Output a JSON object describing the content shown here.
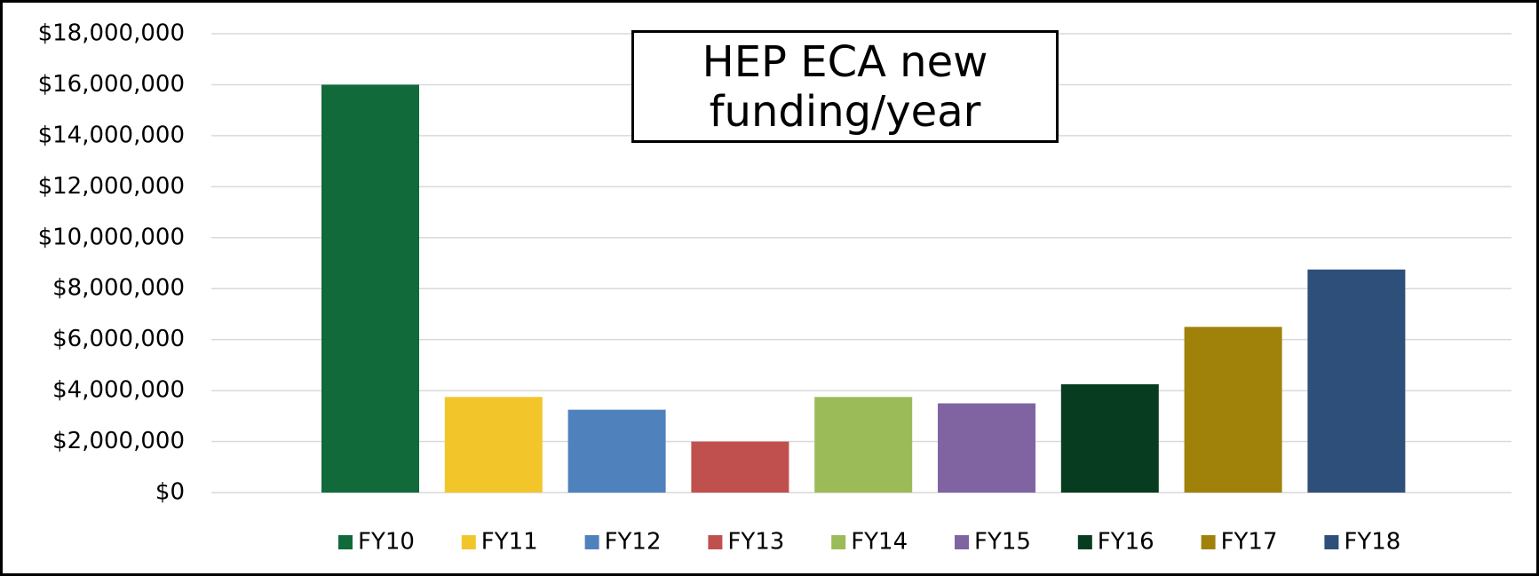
{
  "chart_data": {
    "type": "bar",
    "title": "HEP ECA new funding/year",
    "series": [
      {
        "name": "FY10",
        "color": "#116a3a",
        "values": [
          16000000
        ]
      },
      {
        "name": "FY11",
        "color": "#f2c62b",
        "values": [
          3750000
        ]
      },
      {
        "name": "FY12",
        "color": "#4f81bd",
        "values": [
          3250000
        ]
      },
      {
        "name": "FY13",
        "color": "#c0504d",
        "values": [
          2000000
        ]
      },
      {
        "name": "FY14",
        "color": "#9bbb59",
        "values": [
          3750000
        ]
      },
      {
        "name": "FY15",
        "color": "#8064a2",
        "values": [
          3500000
        ]
      },
      {
        "name": "FY16",
        "color": "#083c20",
        "values": [
          4250000
        ]
      },
      {
        "name": "FY17",
        "color": "#a0820b",
        "values": [
          6500000
        ]
      },
      {
        "name": "FY18",
        "color": "#2e4f7a",
        "values": [
          8750000
        ]
      }
    ],
    "ylim": [
      0,
      18000000
    ],
    "yticks": [
      {
        "value": 0,
        "label": "$0"
      },
      {
        "value": 2000000,
        "label": "$2,000,000"
      },
      {
        "value": 4000000,
        "label": "$4,000,000"
      },
      {
        "value": 6000000,
        "label": "$6,000,000"
      },
      {
        "value": 8000000,
        "label": "$8,000,000"
      },
      {
        "value": 10000000,
        "label": "$10,000,000"
      },
      {
        "value": 12000000,
        "label": "$12,000,000"
      },
      {
        "value": 14000000,
        "label": "$14,000,000"
      },
      {
        "value": 16000000,
        "label": "$16,000,000"
      },
      {
        "value": 18000000,
        "label": "$18,000,000"
      }
    ],
    "grid": true,
    "legend": "bottom"
  }
}
